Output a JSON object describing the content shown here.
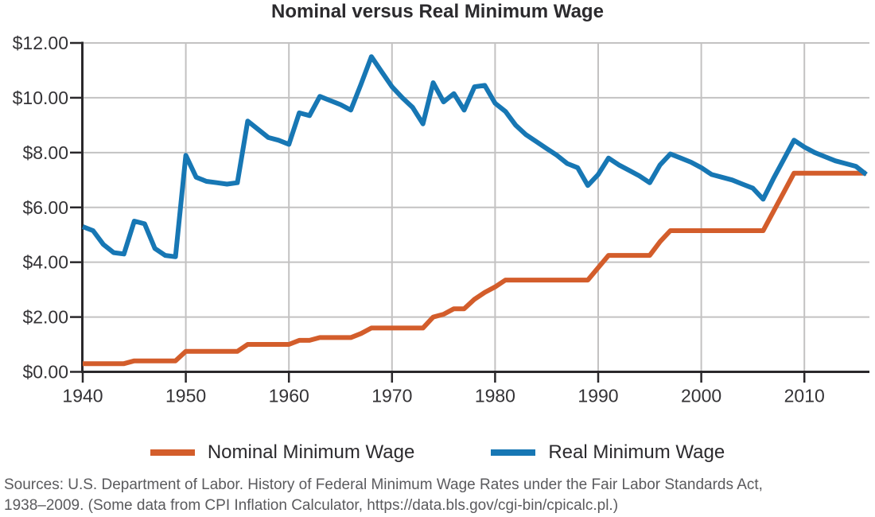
{
  "title": "Nominal versus Real Minimum Wage",
  "legend": [
    {
      "label": "Nominal Minimum Wage",
      "color": "#d35d2b"
    },
    {
      "label": "Real Minimum Wage",
      "color": "#1777b4"
    }
  ],
  "sources": {
    "line1": "Sources: U.S. Department of Labor. History of Federal Minimum Wage Rates under the Fair Labor Standards Act,",
    "line2": "1938–2009. (Some data from CPI Inflation Calculator, https://data.bls.gov/cgi-bin/cpicalc.pl.)"
  },
  "colors": {
    "nominal_line": "#d35d2b",
    "real_line": "#1777b4",
    "gridline": "#c3c2c2",
    "axis": "#2a282b",
    "tick_label": "#343336",
    "title_text": "#2b2a2d",
    "sources_text": "#5a5a5d"
  },
  "chart_data": {
    "type": "line",
    "title": "Nominal versus Real Minimum Wage",
    "xlabel": "",
    "ylabel": "",
    "grid": true,
    "legend_position": "bottom",
    "xlim": [
      1940,
      2016.5
    ],
    "ylim": [
      0,
      12
    ],
    "x_ticks": [
      {
        "value": 1940,
        "label": "1940"
      },
      {
        "value": 1950,
        "label": "1950"
      },
      {
        "value": 1960,
        "label": "1960"
      },
      {
        "value": 1970,
        "label": "1970"
      },
      {
        "value": 1980,
        "label": "1980"
      },
      {
        "value": 1990,
        "label": "1990"
      },
      {
        "value": 2000,
        "label": "2000"
      },
      {
        "value": 2010,
        "label": "2010"
      }
    ],
    "y_ticks": [
      {
        "value": 0,
        "label": "$0.00"
      },
      {
        "value": 2,
        "label": "$2.00"
      },
      {
        "value": 4,
        "label": "$4.00"
      },
      {
        "value": 6,
        "label": "$6.00"
      },
      {
        "value": 8,
        "label": "$8.00"
      },
      {
        "value": 10,
        "label": "$10.00"
      },
      {
        "value": 12,
        "label": "$12.00"
      }
    ],
    "x": [
      1940,
      1941,
      1942,
      1943,
      1944,
      1945,
      1946,
      1947,
      1948,
      1949,
      1950,
      1951,
      1952,
      1953,
      1954,
      1955,
      1956,
      1957,
      1958,
      1959,
      1960,
      1961,
      1962,
      1963,
      1964,
      1965,
      1966,
      1967,
      1968,
      1969,
      1970,
      1971,
      1972,
      1973,
      1974,
      1975,
      1976,
      1977,
      1978,
      1979,
      1980,
      1981,
      1982,
      1983,
      1984,
      1985,
      1986,
      1987,
      1988,
      1989,
      1990,
      1991,
      1992,
      1993,
      1994,
      1995,
      1996,
      1997,
      1998,
      1999,
      2000,
      2001,
      2002,
      2003,
      2004,
      2005,
      2006,
      2007,
      2008,
      2009,
      2010,
      2011,
      2012,
      2013,
      2014,
      2015,
      2016
    ],
    "series": [
      {
        "name": "Nominal Minimum Wage",
        "color": "#d35d2b",
        "values": [
          0.3,
          0.3,
          0.3,
          0.3,
          0.3,
          0.4,
          0.4,
          0.4,
          0.4,
          0.4,
          0.75,
          0.75,
          0.75,
          0.75,
          0.75,
          0.75,
          1.0,
          1.0,
          1.0,
          1.0,
          1.0,
          1.15,
          1.15,
          1.25,
          1.25,
          1.25,
          1.25,
          1.4,
          1.6,
          1.6,
          1.6,
          1.6,
          1.6,
          1.6,
          2.0,
          2.1,
          2.3,
          2.3,
          2.65,
          2.9,
          3.1,
          3.35,
          3.35,
          3.35,
          3.35,
          3.35,
          3.35,
          3.35,
          3.35,
          3.35,
          3.8,
          4.25,
          4.25,
          4.25,
          4.25,
          4.25,
          4.75,
          5.15,
          5.15,
          5.15,
          5.15,
          5.15,
          5.15,
          5.15,
          5.15,
          5.15,
          5.15,
          5.85,
          6.55,
          7.25,
          7.25,
          7.25,
          7.25,
          7.25,
          7.25,
          7.25,
          7.25
        ]
      },
      {
        "name": "Real Minimum Wage",
        "color": "#1777b4",
        "values": [
          5.3,
          5.15,
          4.65,
          4.35,
          4.3,
          5.5,
          5.4,
          4.5,
          4.25,
          4.2,
          7.9,
          7.1,
          6.95,
          6.9,
          6.85,
          6.9,
          9.15,
          8.85,
          8.55,
          8.45,
          8.3,
          9.45,
          9.35,
          10.05,
          9.9,
          9.75,
          9.55,
          10.5,
          11.5,
          10.95,
          10.4,
          10.0,
          9.65,
          9.05,
          10.55,
          9.85,
          10.15,
          9.55,
          10.4,
          10.45,
          9.8,
          9.5,
          9.0,
          8.65,
          8.4,
          8.15,
          7.9,
          7.6,
          7.45,
          6.8,
          7.2,
          7.8,
          7.55,
          7.35,
          7.15,
          6.9,
          7.55,
          7.95,
          7.8,
          7.65,
          7.45,
          7.2,
          7.1,
          7.0,
          6.85,
          6.7,
          6.3,
          7.05,
          7.75,
          8.45,
          8.2,
          8.0,
          7.85,
          7.7,
          7.6,
          7.5,
          7.2
        ]
      }
    ]
  }
}
